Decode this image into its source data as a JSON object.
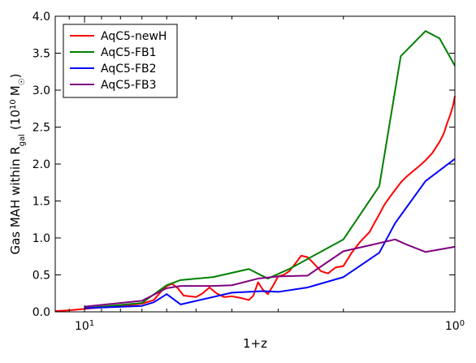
{
  "chart_data": {
    "type": "line",
    "title": "",
    "xlabel": "1+z",
    "ylabel_main": "Gas MAH within R",
    "ylabel_sub": "gal",
    "ylabel_paren_open": "(10",
    "ylabel_exp": "10",
    "ylabel_unit": "M",
    "ylabel_sun": "☉",
    "ylabel_paren_close": ")",
    "x_scale": "log",
    "x_direction": "decreasing",
    "xlim": [
      12.0,
      1.0
    ],
    "ylim": [
      0.0,
      4.0
    ],
    "x_ticks": [
      {
        "value": 10,
        "base": "10",
        "exp": "1"
      },
      {
        "value": 1,
        "base": "10",
        "exp": "0"
      }
    ],
    "y_ticks": [
      "0.0",
      "0.5",
      "1.0",
      "1.5",
      "2.0",
      "2.5",
      "3.0",
      "3.5",
      "4.0"
    ],
    "legend_position": "top-left",
    "grid": false,
    "series": [
      {
        "name": "AqC5-newH",
        "color": "#ff0000",
        "points": [
          [
            12.0,
            0.01
          ],
          [
            11.0,
            0.02
          ],
          [
            10.0,
            0.04
          ],
          [
            9.0,
            0.06
          ],
          [
            8.0,
            0.08
          ],
          [
            7.0,
            0.11
          ],
          [
            6.5,
            0.16
          ],
          [
            6.2,
            0.28
          ],
          [
            6.0,
            0.35
          ],
          [
            5.8,
            0.38
          ],
          [
            5.6,
            0.32
          ],
          [
            5.4,
            0.22
          ],
          [
            5.0,
            0.2
          ],
          [
            4.8,
            0.25
          ],
          [
            4.6,
            0.33
          ],
          [
            4.4,
            0.25
          ],
          [
            4.2,
            0.2
          ],
          [
            4.0,
            0.21
          ],
          [
            3.8,
            0.19
          ],
          [
            3.6,
            0.16
          ],
          [
            3.5,
            0.22
          ],
          [
            3.4,
            0.4
          ],
          [
            3.3,
            0.3
          ],
          [
            3.2,
            0.24
          ],
          [
            3.1,
            0.35
          ],
          [
            3.0,
            0.48
          ],
          [
            2.9,
            0.5
          ],
          [
            2.8,
            0.55
          ],
          [
            2.7,
            0.65
          ],
          [
            2.6,
            0.76
          ],
          [
            2.5,
            0.74
          ],
          [
            2.4,
            0.65
          ],
          [
            2.3,
            0.55
          ],
          [
            2.2,
            0.52
          ],
          [
            2.1,
            0.6
          ],
          [
            2.0,
            0.62
          ],
          [
            1.9,
            0.8
          ],
          [
            1.8,
            0.95
          ],
          [
            1.7,
            1.08
          ],
          [
            1.65,
            1.2
          ],
          [
            1.6,
            1.32
          ],
          [
            1.55,
            1.45
          ],
          [
            1.5,
            1.55
          ],
          [
            1.45,
            1.65
          ],
          [
            1.4,
            1.75
          ],
          [
            1.35,
            1.83
          ],
          [
            1.3,
            1.9
          ],
          [
            1.25,
            1.97
          ],
          [
            1.2,
            2.05
          ],
          [
            1.15,
            2.15
          ],
          [
            1.1,
            2.3
          ],
          [
            1.07,
            2.42
          ],
          [
            1.05,
            2.55
          ],
          [
            1.03,
            2.66
          ],
          [
            1.01,
            2.8
          ],
          [
            1.0,
            2.92
          ]
        ]
      },
      {
        "name": "AqC5-FB1",
        "color": "#008000",
        "points": [
          [
            10.0,
            0.05
          ],
          [
            7.0,
            0.12
          ],
          [
            6.0,
            0.36
          ],
          [
            5.5,
            0.43
          ],
          [
            4.5,
            0.47
          ],
          [
            3.6,
            0.58
          ],
          [
            3.2,
            0.45
          ],
          [
            2.8,
            0.58
          ],
          [
            2.0,
            0.98
          ],
          [
            1.6,
            1.7
          ],
          [
            1.4,
            3.46
          ],
          [
            1.2,
            3.8
          ],
          [
            1.1,
            3.7
          ],
          [
            1.0,
            3.33
          ]
        ]
      },
      {
        "name": "AqC5-FB2",
        "color": "#0000ff",
        "points": [
          [
            10.0,
            0.05
          ],
          [
            7.0,
            0.08
          ],
          [
            6.5,
            0.13
          ],
          [
            6.0,
            0.24
          ],
          [
            5.5,
            0.1
          ],
          [
            4.0,
            0.26
          ],
          [
            3.3,
            0.28
          ],
          [
            3.0,
            0.27
          ],
          [
            2.5,
            0.33
          ],
          [
            2.0,
            0.47
          ],
          [
            1.6,
            0.8
          ],
          [
            1.45,
            1.2
          ],
          [
            1.2,
            1.77
          ],
          [
            1.0,
            2.07
          ]
        ]
      },
      {
        "name": "AqC5-FB3",
        "color": "#800080",
        "points": [
          [
            10.0,
            0.07
          ],
          [
            7.0,
            0.15
          ],
          [
            6.0,
            0.32
          ],
          [
            5.5,
            0.35
          ],
          [
            4.5,
            0.35
          ],
          [
            4.0,
            0.36
          ],
          [
            3.4,
            0.45
          ],
          [
            3.0,
            0.48
          ],
          [
            2.5,
            0.49
          ],
          [
            2.0,
            0.82
          ],
          [
            1.7,
            0.9
          ],
          [
            1.45,
            0.98
          ],
          [
            1.35,
            0.91
          ],
          [
            1.2,
            0.81
          ],
          [
            1.0,
            0.88
          ]
        ]
      }
    ]
  }
}
